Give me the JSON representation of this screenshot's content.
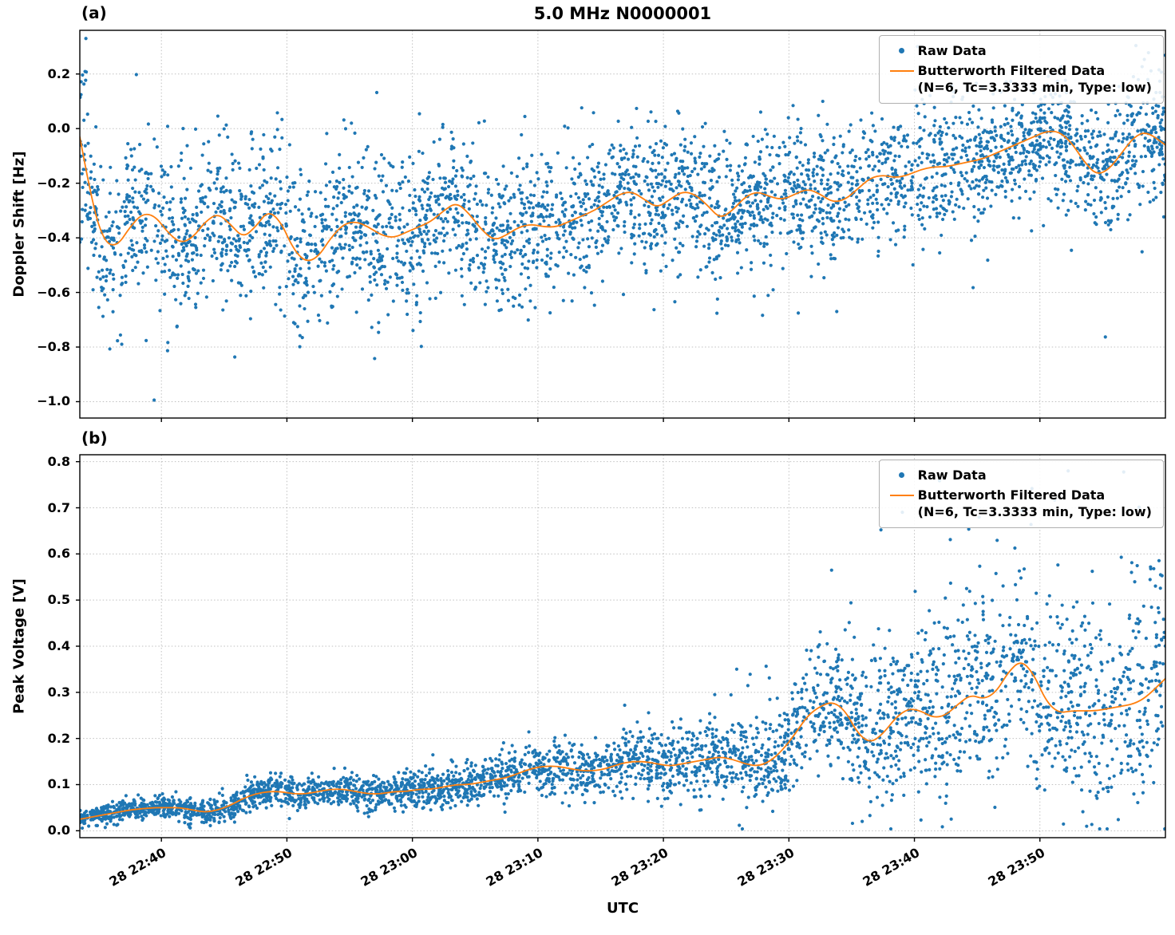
{
  "figure": {
    "title": "5.0 MHz N0000001",
    "xlabel": "UTC",
    "colors": {
      "raw": "#1f77b4",
      "filtered": "#ff7f0e",
      "grid": "#8c8c8c",
      "axes": "#000000",
      "background": "#ffffff",
      "text": "#000000"
    },
    "xticks": [
      {
        "minute": 6.5,
        "label": "28 22:40"
      },
      {
        "minute": 16.5,
        "label": "28 22:50"
      },
      {
        "minute": 26.5,
        "label": "28 23:00"
      },
      {
        "minute": 36.5,
        "label": "28 23:10"
      },
      {
        "minute": 46.5,
        "label": "28 23:20"
      },
      {
        "minute": 56.5,
        "label": "28 23:30"
      },
      {
        "minute": 66.5,
        "label": "28 23:40"
      },
      {
        "minute": 76.5,
        "label": "28 23:50"
      }
    ]
  },
  "legend": {
    "entries": [
      {
        "marker": "dot",
        "label": "Raw Data"
      },
      {
        "marker": "line",
        "label": "Butterworth Filtered Data\n(N=6, Tc=3.3333 min, Type: low)"
      }
    ]
  },
  "chart_data": [
    {
      "panel_label": "(a)",
      "type": "scatter",
      "title": "5.0 MHz N0000001",
      "ylabel": "Doppler Shift [Hz]",
      "xlabel": "UTC",
      "grid": "dotted",
      "legend_position": "upper right",
      "xlim_minutes": [
        0,
        86.5
      ],
      "ylim": [
        -1.06,
        0.36
      ],
      "yticks": [
        0.2,
        0.0,
        -0.2,
        -0.4,
        -0.6,
        -0.8,
        -1.0
      ],
      "ytick_labels": [
        "0.2",
        "0.0",
        "−0.2",
        "−0.4",
        "−0.6",
        "−0.8",
        "−1.0"
      ],
      "series": [
        {
          "name": "Raw Data",
          "type": "scatter",
          "color": "#1f77b4",
          "seed": 42,
          "n_points": 3800,
          "marker_radius": 2.1,
          "noise_profile": {
            "x": [
              0,
              20,
              40,
              60,
              80,
              86.5
            ],
            "std": [
              0.15,
              0.15,
              0.13,
              0.12,
              0.11,
              0.12
            ]
          },
          "outliers": [
            {
              "prob": 0.02,
              "offset_min": -0.45,
              "offset_max": -0.1,
              "after_minute": 0
            },
            {
              "prob": 0.008,
              "offset_min": 0.08,
              "offset_max": 0.3,
              "after_minute": 0
            }
          ],
          "value_clamp": [
            -1.03,
            0.33
          ]
        },
        {
          "name": "Butterworth Filtered Data (N=6, Tc=3.3333 min, Type: low)",
          "type": "line",
          "color": "#ff7f0e",
          "width": 1.8,
          "x": [
            0,
            1,
            2,
            3,
            4,
            5,
            6,
            7,
            8,
            9,
            10,
            11,
            12,
            13,
            14,
            15,
            16,
            17,
            18,
            19,
            20,
            21,
            22,
            23,
            24,
            25,
            26,
            27,
            28,
            29,
            30,
            31,
            32,
            33,
            34,
            35,
            36,
            37,
            38,
            39,
            40,
            41,
            42,
            43,
            44,
            45,
            46,
            47,
            48,
            49,
            50,
            51,
            52,
            53,
            54,
            55,
            56,
            57,
            58,
            59,
            60,
            61,
            62,
            63,
            64,
            65,
            66,
            67,
            68,
            69,
            70,
            71,
            72,
            73,
            74,
            75,
            76,
            77,
            78,
            79,
            80,
            81,
            82,
            83,
            84,
            85,
            86.5
          ],
          "y": [
            -0.03,
            -0.28,
            -0.42,
            -0.43,
            -0.36,
            -0.31,
            -0.32,
            -0.38,
            -0.42,
            -0.4,
            -0.34,
            -0.31,
            -0.35,
            -0.4,
            -0.36,
            -0.3,
            -0.34,
            -0.44,
            -0.49,
            -0.47,
            -0.4,
            -0.35,
            -0.34,
            -0.36,
            -0.39,
            -0.4,
            -0.38,
            -0.36,
            -0.34,
            -0.3,
            -0.27,
            -0.31,
            -0.37,
            -0.41,
            -0.39,
            -0.36,
            -0.35,
            -0.36,
            -0.36,
            -0.34,
            -0.32,
            -0.3,
            -0.27,
            -0.24,
            -0.23,
            -0.26,
            -0.29,
            -0.26,
            -0.23,
            -0.24,
            -0.28,
            -0.33,
            -0.3,
            -0.25,
            -0.23,
            -0.25,
            -0.26,
            -0.24,
            -0.22,
            -0.24,
            -0.27,
            -0.26,
            -0.22,
            -0.18,
            -0.17,
            -0.18,
            -0.17,
            -0.15,
            -0.14,
            -0.14,
            -0.13,
            -0.12,
            -0.11,
            -0.09,
            -0.07,
            -0.05,
            -0.03,
            -0.01,
            -0.01,
            -0.05,
            -0.12,
            -0.17,
            -0.15,
            -0.09,
            -0.03,
            -0.01,
            -0.06
          ]
        }
      ]
    },
    {
      "panel_label": "(b)",
      "type": "scatter",
      "ylabel": "Peak Voltage [V]",
      "xlabel": "UTC",
      "grid": "dotted",
      "legend_position": "upper right",
      "xlim_minutes": [
        0,
        86.5
      ],
      "ylim": [
        -0.015,
        0.815
      ],
      "yticks": [
        0.8,
        0.7,
        0.6,
        0.5,
        0.4,
        0.3,
        0.2,
        0.1,
        0.0
      ],
      "ytick_labels": [
        "0.8",
        "0.7",
        "0.6",
        "0.5",
        "0.4",
        "0.3",
        "0.2",
        "0.1",
        "0.0"
      ],
      "series": [
        {
          "name": "Raw Data",
          "type": "scatter",
          "color": "#1f77b4",
          "seed": 1337,
          "n_points": 3800,
          "marker_radius": 2.1,
          "noise_profile": {
            "x": [
              0,
              6,
              12,
              18,
              24,
              30,
              36,
              42,
              48,
              54,
              58,
              62,
              66,
              70,
              74,
              78,
              82,
              86.5
            ],
            "std": [
              0.01,
              0.012,
              0.015,
              0.018,
              0.02,
              0.022,
              0.028,
              0.034,
              0.04,
              0.046,
              0.065,
              0.08,
              0.09,
              0.1,
              0.11,
              0.11,
              0.115,
              0.12
            ]
          },
          "outliers": [
            {
              "prob": 0.035,
              "offset_min": 0.08,
              "offset_max": 0.3,
              "after_minute": 52
            },
            {
              "prob": 0.012,
              "offset_min": 0.22,
              "offset_max": 0.46,
              "after_minute": 62
            }
          ],
          "value_clamp": [
            0.004,
            0.78
          ]
        },
        {
          "name": "Butterworth Filtered Data (N=6, Tc=3.3333 min, Type: low)",
          "type": "line",
          "color": "#ff7f0e",
          "width": 1.8,
          "x": [
            0,
            1,
            2,
            3,
            4,
            5,
            6,
            7,
            8,
            9,
            10,
            11,
            12,
            13,
            14,
            15,
            16,
            17,
            18,
            19,
            20,
            21,
            22,
            23,
            24,
            25,
            26,
            27,
            28,
            29,
            30,
            31,
            32,
            33,
            34,
            35,
            36,
            37,
            38,
            39,
            40,
            41,
            42,
            43,
            44,
            45,
            46,
            47,
            48,
            49,
            50,
            51,
            52,
            53,
            54,
            55,
            56,
            57,
            58,
            59,
            60,
            61,
            62,
            63,
            64,
            65,
            66,
            67,
            68,
            69,
            70,
            71,
            72,
            73,
            74,
            75,
            76,
            77,
            78,
            79,
            80,
            81,
            82,
            83,
            84,
            85,
            86.5
          ],
          "y": [
            0.025,
            0.03,
            0.035,
            0.04,
            0.045,
            0.048,
            0.05,
            0.05,
            0.05,
            0.045,
            0.04,
            0.045,
            0.055,
            0.07,
            0.08,
            0.085,
            0.085,
            0.08,
            0.08,
            0.085,
            0.09,
            0.09,
            0.085,
            0.08,
            0.08,
            0.085,
            0.085,
            0.09,
            0.09,
            0.095,
            0.1,
            0.1,
            0.105,
            0.11,
            0.115,
            0.125,
            0.135,
            0.14,
            0.14,
            0.135,
            0.13,
            0.13,
            0.135,
            0.145,
            0.15,
            0.15,
            0.145,
            0.14,
            0.145,
            0.15,
            0.155,
            0.16,
            0.155,
            0.145,
            0.14,
            0.15,
            0.175,
            0.21,
            0.25,
            0.27,
            0.28,
            0.26,
            0.21,
            0.19,
            0.21,
            0.245,
            0.265,
            0.26,
            0.245,
            0.25,
            0.275,
            0.295,
            0.285,
            0.3,
            0.345,
            0.37,
            0.34,
            0.28,
            0.255,
            0.26,
            0.26,
            0.26,
            0.265,
            0.27,
            0.275,
            0.29,
            0.33
          ]
        }
      ]
    }
  ]
}
